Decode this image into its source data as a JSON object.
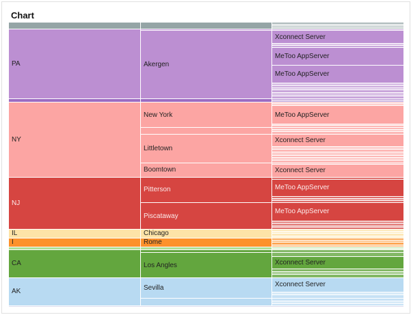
{
  "title": "Chart",
  "chart_data": {
    "type": "partition",
    "colors": {
      "gray": "#95a5a6",
      "PA": "#bc8fd2",
      "purple": "#9b6bc2",
      "NY": "#fca5a3",
      "NJ": "#d64541",
      "IL": "#fde3a7",
      "I": "#fd912b",
      "green": "#aedf97",
      "CA": "#63a63e",
      "AK": "#b8daf2"
    },
    "tree": [
      {
        "color": "gray",
        "children": [
          {
            "children": [
              {
                "value": 3
              },
              {
                "value": 2
              },
              {
                "value": 2
              },
              {
                "value": 3
              }
            ]
          }
        ]
      },
      {
        "name": "PA",
        "color": "PA",
        "children": [
          {
            "children": [
              {
                "value": 2
              }
            ]
          },
          {
            "name": "Akergen",
            "children": [
              {
                "name": "Xconnect Server",
                "value": 18
              },
              {
                "value": 3
              },
              {
                "value": 3
              },
              {
                "name": "MeToo AppServer",
                "value": 25
              },
              {
                "name": "MeToo AppServer",
                "value": 25
              },
              {
                "value": 4
              },
              {
                "value": 3
              },
              {
                "value": 3
              },
              {
                "value": 4
              },
              {
                "value": 4
              },
              {
                "value": 4
              }
            ]
          }
        ]
      },
      {
        "color": "purple",
        "children": [
          {
            "children": [
              {
                "value": 2
              },
              {
                "value": 3
              }
            ]
          }
        ]
      },
      {
        "name": "NY",
        "color": "NY",
        "children": [
          {
            "name": "New York",
            "children": [
              {
                "value": 2
              },
              {
                "value": 3
              },
              {
                "name": "MeToo AppServer",
                "value": 26
              },
              {
                "value": 2
              },
              {
                "value": 3
              }
            ]
          },
          {
            "children": [
              {
                "value": 3
              },
              {
                "value": 3
              },
              {
                "value": 3
              }
            ]
          },
          {
            "name": "Littletown",
            "children": [
              {
                "name": "Xconnect Server",
                "value": 18
              },
              {
                "value": 4
              },
              {
                "value": 4
              },
              {
                "value": 4
              },
              {
                "value": 3
              },
              {
                "value": 4
              },
              {
                "value": 4
              }
            ]
          },
          {
            "name": "Boomtown",
            "children": [
              {
                "value": 2
              },
              {
                "name": "Xconnect Server",
                "value": 18
              }
            ]
          }
        ]
      },
      {
        "name": "NJ",
        "color": "NJ",
        "light": true,
        "children": [
          {
            "name": "Pitterson",
            "children": [
              {
                "value": 3
              },
              {
                "name": "MeToo AppServer",
                "value": 24
              },
              {
                "value": 3
              },
              {
                "value": 3
              },
              {
                "value": 3
              }
            ]
          },
          {
            "name": "Piscataway",
            "children": [
              {
                "name": "MeToo AppServer",
                "value": 26
              },
              {
                "value": 4
              },
              {
                "value": 3
              },
              {
                "value": 2
              },
              {
                "value": 3
              }
            ]
          }
        ]
      },
      {
        "name": "IL",
        "color": "IL",
        "children": [
          {
            "name": "Chicago",
            "children": [
              {
                "value": 3
              },
              {
                "value": 3
              },
              {
                "value": 3
              },
              {
                "value": 3
              }
            ]
          }
        ]
      },
      {
        "name": "I",
        "color": "I",
        "children": [
          {
            "name": "Rome",
            "children": [
              {
                "value": 3
              },
              {
                "value": 3
              },
              {
                "value": 4
              },
              {
                "value": 3
              }
            ]
          }
        ]
      },
      {
        "color": "green",
        "children": [
          {
            "children": [
              {
                "value": 2
              },
              {
                "value": 2
              }
            ]
          }
        ]
      },
      {
        "name": "CA",
        "color": "CA",
        "children": [
          {
            "children": [
              {
                "value": 4
              }
            ]
          },
          {
            "children": [
              {
                "value": 1
              }
            ]
          },
          {
            "name": "Los Angles",
            "children": [
              {
                "value": 4
              },
              {
                "name": "Xconnect Server",
                "value": 18
              },
              {
                "value": 4
              },
              {
                "value": 4
              },
              {
                "value": 4
              }
            ]
          }
        ]
      },
      {
        "name": "AK",
        "color": "AK",
        "children": [
          {
            "name": "Sevilla",
            "children": [
              {
                "name": "Xconnect Server",
                "value": 21
              },
              {
                "value": 4
              },
              {
                "value": 4
              }
            ]
          },
          {
            "children": [
              {
                "value": 4
              },
              {
                "value": 4
              },
              {
                "value": 3
              }
            ]
          }
        ]
      }
    ]
  }
}
